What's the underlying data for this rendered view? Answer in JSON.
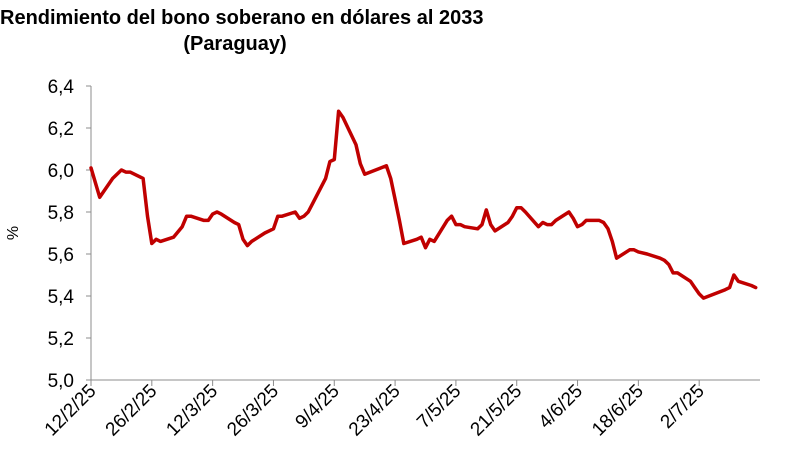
{
  "chart_data": {
    "type": "line",
    "title": "Rendimiento del bono soberano en dólares al 2033",
    "subtitle": "(Paraguay)",
    "xlabel": "",
    "ylabel": "%",
    "ylim": [
      5.0,
      6.4
    ],
    "y_ticks": [
      "5,0",
      "5,2",
      "5,4",
      "5,6",
      "5,8",
      "6,0",
      "6,2",
      "6,4"
    ],
    "x_range": [
      "2025-02-12",
      "2025-07-16"
    ],
    "x_ticks": [
      {
        "date": "2025-02-12",
        "label": "12/2/25"
      },
      {
        "date": "2025-02-26",
        "label": "26/2/25"
      },
      {
        "date": "2025-03-12",
        "label": "12/3/25"
      },
      {
        "date": "2025-03-26",
        "label": "26/3/25"
      },
      {
        "date": "2025-04-09",
        "label": "9/4/25"
      },
      {
        "date": "2025-04-23",
        "label": "23/4/25"
      },
      {
        "date": "2025-05-07",
        "label": "7/5/25"
      },
      {
        "date": "2025-05-21",
        "label": "21/5/25"
      },
      {
        "date": "2025-06-04",
        "label": "4/6/25"
      },
      {
        "date": "2025-06-18",
        "label": "18/6/25"
      },
      {
        "date": "2025-07-02",
        "label": "2/7/25"
      }
    ],
    "grid": false,
    "legend": "none",
    "series_color": "#C00000",
    "series": [
      {
        "x": [
          "2025-02-12",
          "2025-02-14",
          "2025-02-17",
          "2025-02-19",
          "2025-02-20",
          "2025-02-21",
          "2025-02-24",
          "2025-02-25",
          "2025-02-26",
          "2025-02-27",
          "2025-02-28",
          "2025-03-03",
          "2025-03-05",
          "2025-03-06",
          "2025-03-07",
          "2025-03-10",
          "2025-03-11",
          "2025-03-12",
          "2025-03-13",
          "2025-03-14",
          "2025-03-17",
          "2025-03-18",
          "2025-03-19",
          "2025-03-20",
          "2025-03-21",
          "2025-03-24",
          "2025-03-25",
          "2025-03-26",
          "2025-03-27",
          "2025-03-28",
          "2025-03-31",
          "2025-04-01",
          "2025-04-02",
          "2025-04-03",
          "2025-04-04",
          "2025-04-07",
          "2025-04-08",
          "2025-04-09",
          "2025-04-10",
          "2025-04-11",
          "2025-04-14",
          "2025-04-15",
          "2025-04-16",
          "2025-04-21",
          "2025-04-22",
          "2025-04-23",
          "2025-04-24",
          "2025-04-25",
          "2025-04-28",
          "2025-04-29",
          "2025-04-30",
          "2025-05-01",
          "2025-05-02",
          "2025-05-05",
          "2025-05-06",
          "2025-05-07",
          "2025-05-08",
          "2025-05-09",
          "2025-05-12",
          "2025-05-13",
          "2025-05-14",
          "2025-05-15",
          "2025-05-16",
          "2025-05-19",
          "2025-05-20",
          "2025-05-21",
          "2025-05-22",
          "2025-05-23",
          "2025-05-26",
          "2025-05-27",
          "2025-05-28",
          "2025-05-29",
          "2025-05-30",
          "2025-06-02",
          "2025-06-03",
          "2025-06-04",
          "2025-06-05",
          "2025-06-06",
          "2025-06-09",
          "2025-06-10",
          "2025-06-11",
          "2025-06-12",
          "2025-06-13",
          "2025-06-16",
          "2025-06-17",
          "2025-06-18",
          "2025-06-20",
          "2025-06-23",
          "2025-06-24",
          "2025-06-25",
          "2025-06-26",
          "2025-06-27",
          "2025-06-30",
          "2025-07-01",
          "2025-07-02",
          "2025-07-03",
          "2025-07-08",
          "2025-07-09",
          "2025-07-10",
          "2025-07-11",
          "2025-07-14",
          "2025-07-15"
        ],
        "values": [
          6.01,
          5.87,
          5.96,
          6.0,
          5.99,
          5.99,
          5.96,
          5.78,
          5.65,
          5.67,
          5.66,
          5.68,
          5.73,
          5.78,
          5.78,
          5.76,
          5.76,
          5.79,
          5.8,
          5.79,
          5.75,
          5.74,
          5.67,
          5.64,
          5.66,
          5.7,
          5.71,
          5.72,
          5.78,
          5.78,
          5.8,
          5.77,
          5.78,
          5.8,
          5.84,
          5.96,
          6.04,
          6.05,
          6.28,
          6.25,
          6.12,
          6.03,
          5.98,
          6.02,
          5.96,
          5.86,
          5.76,
          5.65,
          5.67,
          5.68,
          5.63,
          5.67,
          5.66,
          5.76,
          5.78,
          5.74,
          5.74,
          5.73,
          5.72,
          5.74,
          5.81,
          5.74,
          5.71,
          5.75,
          5.78,
          5.82,
          5.82,
          5.8,
          5.73,
          5.75,
          5.74,
          5.74,
          5.76,
          5.8,
          5.77,
          5.73,
          5.74,
          5.76,
          5.76,
          5.75,
          5.72,
          5.66,
          5.58,
          5.62,
          5.62,
          5.61,
          5.6,
          5.58,
          5.57,
          5.55,
          5.51,
          5.51,
          5.47,
          5.44,
          5.41,
          5.39,
          5.43,
          5.44,
          5.5,
          5.47,
          5.45,
          5.44
        ]
      }
    ]
  }
}
